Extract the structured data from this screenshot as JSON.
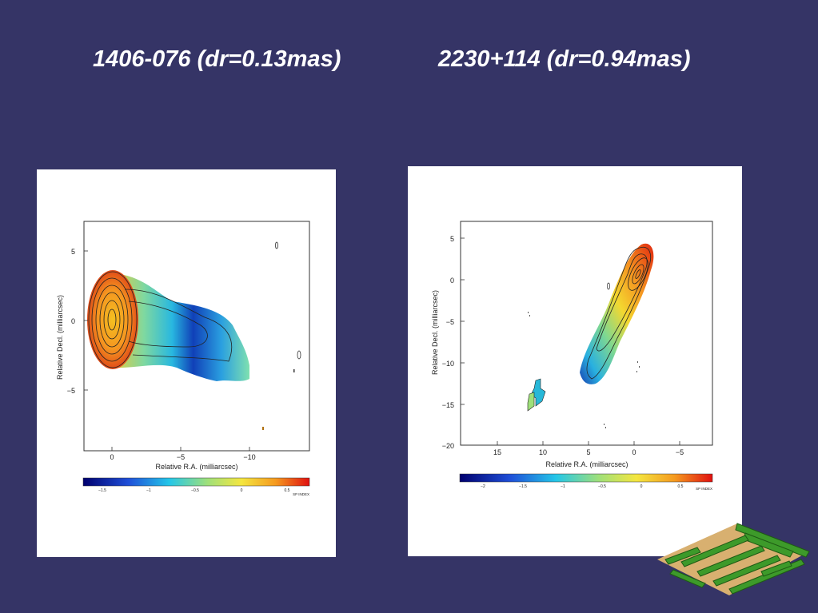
{
  "slide": {
    "title_left": "1406-076 (dr=0.13mas)",
    "title_right": "2230+114 (dr=0.94mas)"
  },
  "colors": {
    "background": "#353466",
    "panel": "#ffffff",
    "maze_green": "#3d9a2a",
    "maze_tan": "#d8b070"
  },
  "plot_left": {
    "ylabel": "Relative Decl. (milliarcsec)",
    "xlabel": "Relative R.A. (milliarcsec)",
    "yticks": [
      "5",
      "0",
      "−5"
    ],
    "xticks": [
      "0",
      "−5",
      "−10"
    ],
    "colorbar_ticks": [
      "−1.5",
      "−1",
      "−0.5",
      "0",
      "0.5"
    ],
    "colorbar_label": "SP INDEX"
  },
  "plot_right": {
    "ylabel": "Relative Decl. (milliarcsec)",
    "xlabel": "Relative R.A. (milliarcsec)",
    "yticks": [
      "5",
      "0",
      "−5",
      "−10",
      "−15",
      "−20"
    ],
    "xticks": [
      "15",
      "10",
      "5",
      "0",
      "−5"
    ],
    "colorbar_ticks": [
      "−2",
      "−1.5",
      "−1",
      "−0.5",
      "0",
      "0.5"
    ],
    "colorbar_label": "SP INDEX"
  },
  "decoration": {
    "icon": "maze-icon"
  }
}
